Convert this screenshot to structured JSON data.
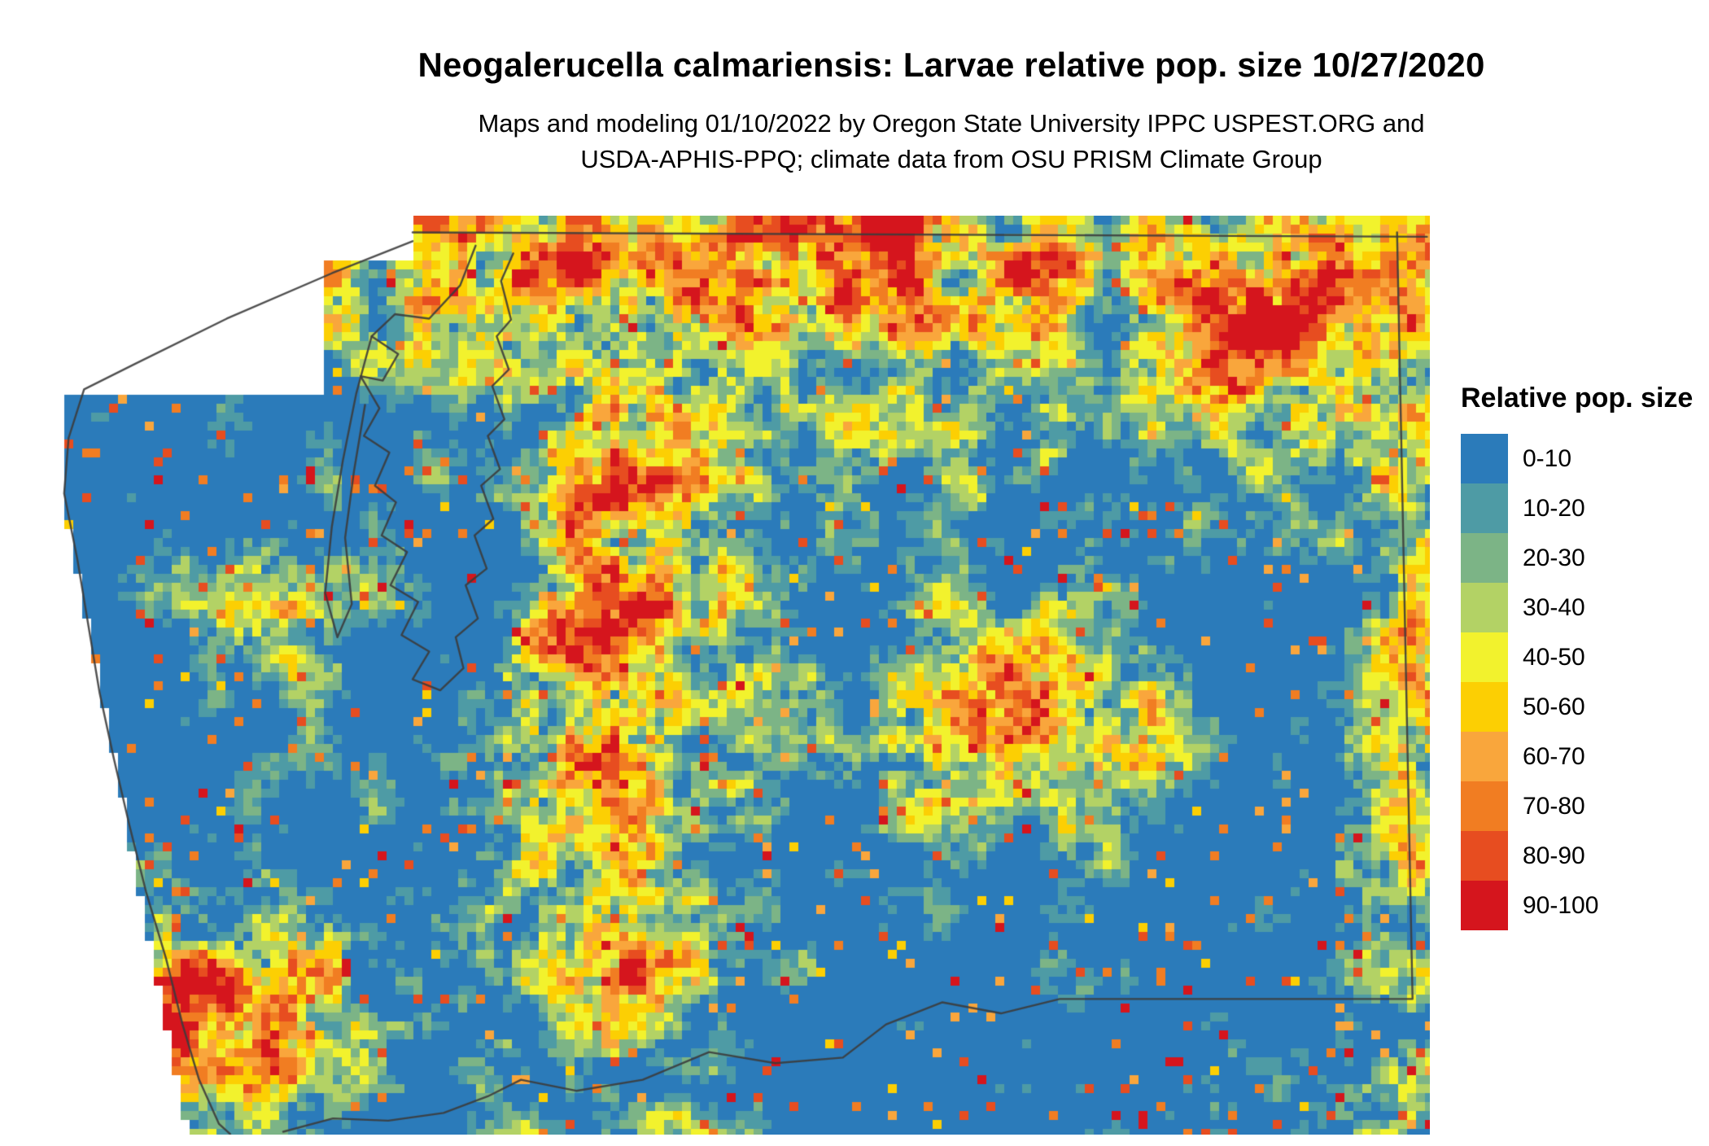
{
  "header": {
    "title": "Neogalerucella calmariensis: Larvae relative pop. size 10/27/2020",
    "subtitle_line1": "Maps and modeling 01/10/2022 by Oregon State University IPPC USPEST.ORG and",
    "subtitle_line2": "USDA-APHIS-PPQ; climate data from OSU PRISM Climate Group"
  },
  "legend": {
    "title": "Relative pop. size",
    "items": [
      {
        "label": "0-10",
        "color": "#2b7bba"
      },
      {
        "label": "10-20",
        "color": "#4e9ba5"
      },
      {
        "label": "20-30",
        "color": "#7cb486"
      },
      {
        "label": "30-40",
        "color": "#b3d265"
      },
      {
        "label": "40-50",
        "color": "#f2f22d"
      },
      {
        "label": "50-60",
        "color": "#fccf03"
      },
      {
        "label": "60-70",
        "color": "#f9a63c"
      },
      {
        "label": "70-80",
        "color": "#f17d22"
      },
      {
        "label": "80-90",
        "color": "#e74d20"
      },
      {
        "label": "90-100",
        "color": "#d5151d"
      }
    ]
  },
  "map": {
    "boundary_color": "#3c3c3c",
    "background": "#ffffff"
  },
  "chart_data": {
    "type": "heatmap",
    "title": "Neogalerucella calmariensis: Larvae relative pop. size 10/27/2020",
    "legend_title": "Relative pop. size",
    "categories": [
      "0-10",
      "10-20",
      "20-30",
      "30-40",
      "40-50",
      "50-60",
      "60-70",
      "70-80",
      "80-90",
      "90-100"
    ],
    "colors": [
      "#2b7bba",
      "#4e9ba5",
      "#7cb486",
      "#b3d265",
      "#f2f22d",
      "#fccf03",
      "#f9a63c",
      "#f17d22",
      "#e74d20",
      "#d5151d"
    ],
    "legend_position": "right"
  }
}
